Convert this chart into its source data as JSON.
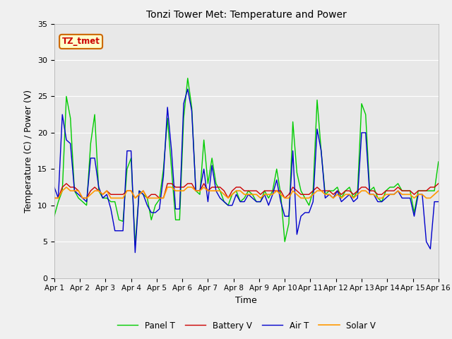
{
  "title": "Tonzi Tower Met: Temperature and Power",
  "xlabel": "Time",
  "ylabel": "Temperature (C) / Power (V)",
  "annotation": "TZ_tmet",
  "ylim": [
    0,
    35
  ],
  "xlim": [
    0,
    15
  ],
  "xtick_labels": [
    "Apr 1",
    "Apr 2",
    "Apr 3",
    "Apr 4",
    "Apr 5",
    "Apr 6",
    "Apr 7",
    "Apr 8",
    "Apr 9",
    "Apr 10",
    "Apr 11",
    "Apr 12",
    "Apr 13",
    "Apr 14",
    "Apr 15",
    "Apr 16"
  ],
  "ytick_labels": [
    "0",
    "5",
    "10",
    "15",
    "20",
    "25",
    "30",
    "35"
  ],
  "fig_facecolor": "#f0f0f0",
  "plot_bg_color": "#e8e8e8",
  "panel_T_color": "#00cc00",
  "battery_V_color": "#cc0000",
  "air_T_color": "#0000cc",
  "solar_V_color": "#ff9900",
  "panel_T": [
    8.5,
    10.5,
    12.0,
    25.0,
    22.0,
    12.0,
    11.0,
    10.5,
    10.0,
    18.5,
    22.5,
    12.0,
    11.0,
    11.0,
    10.5,
    10.5,
    8.0,
    7.8,
    15.0,
    16.5,
    4.5,
    12.0,
    11.5,
    11.0,
    8.0,
    10.0,
    10.8,
    15.0,
    22.0,
    15.0,
    8.0,
    8.0,
    22.0,
    27.5,
    23.5,
    12.0,
    11.5,
    19.0,
    13.0,
    16.5,
    13.0,
    12.0,
    10.5,
    10.0,
    11.5,
    12.0,
    10.5,
    11.0,
    12.0,
    11.5,
    10.5,
    10.5,
    12.0,
    11.0,
    12.0,
    15.0,
    11.5,
    5.0,
    7.5,
    21.5,
    14.5,
    12.0,
    11.0,
    10.0,
    12.0,
    24.5,
    17.5,
    11.5,
    12.0,
    12.0,
    12.5,
    11.0,
    12.0,
    12.5,
    11.0,
    12.0,
    24.0,
    22.5,
    12.0,
    12.5,
    11.0,
    10.5,
    12.0,
    12.5,
    12.5,
    13.0,
    12.0,
    12.0,
    12.0,
    9.0,
    12.0,
    12.0,
    12.0,
    12.0,
    12.0,
    16.0
  ],
  "battery_V": [
    11.0,
    11.0,
    12.5,
    13.0,
    12.5,
    12.5,
    12.0,
    11.0,
    11.0,
    12.0,
    12.5,
    12.0,
    11.5,
    12.0,
    11.5,
    11.5,
    11.5,
    11.5,
    12.0,
    12.0,
    11.0,
    11.5,
    12.0,
    11.0,
    11.5,
    11.5,
    11.0,
    11.0,
    13.0,
    13.0,
    12.5,
    12.5,
    12.5,
    13.0,
    13.0,
    12.0,
    12.0,
    13.0,
    12.0,
    12.5,
    12.5,
    12.5,
    12.0,
    11.0,
    12.0,
    12.5,
    12.5,
    12.0,
    12.0,
    12.0,
    12.0,
    11.5,
    12.0,
    12.0,
    12.0,
    12.0,
    12.0,
    11.0,
    11.5,
    12.5,
    12.0,
    11.5,
    11.5,
    11.5,
    12.0,
    12.5,
    12.0,
    12.0,
    12.0,
    11.5,
    12.0,
    11.5,
    12.0,
    12.0,
    11.5,
    12.0,
    12.5,
    12.5,
    12.0,
    12.0,
    11.5,
    11.5,
    12.0,
    12.0,
    12.0,
    12.5,
    12.0,
    12.0,
    12.0,
    11.5,
    12.0,
    12.0,
    12.0,
    12.5,
    12.5,
    13.0
  ],
  "air_T": [
    12.5,
    11.0,
    22.5,
    19.0,
    18.5,
    12.0,
    11.5,
    11.0,
    10.5,
    16.5,
    16.5,
    12.5,
    11.0,
    11.5,
    9.5,
    6.5,
    6.5,
    6.5,
    17.5,
    17.5,
    3.5,
    12.0,
    11.5,
    10.0,
    9.0,
    9.0,
    9.5,
    14.0,
    23.5,
    17.5,
    9.5,
    9.5,
    24.0,
    26.0,
    23.0,
    12.0,
    12.0,
    15.0,
    10.5,
    15.5,
    12.0,
    11.0,
    10.5,
    10.0,
    10.0,
    11.5,
    10.5,
    10.5,
    11.5,
    11.0,
    10.5,
    10.5,
    11.5,
    10.0,
    11.5,
    13.5,
    10.5,
    8.5,
    8.5,
    17.5,
    6.0,
    8.5,
    9.0,
    9.0,
    10.5,
    20.5,
    17.5,
    11.0,
    11.5,
    11.0,
    12.0,
    10.5,
    11.0,
    11.5,
    10.5,
    11.0,
    20.0,
    20.0,
    11.5,
    11.5,
    10.5,
    10.5,
    11.0,
    11.5,
    11.5,
    12.0,
    11.0,
    11.0,
    11.0,
    8.5,
    11.5,
    11.5,
    5.0,
    4.0,
    10.5,
    10.5
  ],
  "solar_V": [
    11.0,
    11.0,
    12.0,
    12.5,
    12.0,
    12.0,
    12.0,
    11.0,
    11.0,
    11.5,
    12.0,
    12.0,
    11.5,
    12.0,
    11.0,
    11.0,
    11.0,
    11.0,
    12.0,
    12.0,
    11.0,
    11.5,
    12.0,
    11.0,
    11.0,
    11.0,
    11.0,
    11.0,
    12.5,
    12.5,
    12.0,
    12.0,
    12.0,
    12.5,
    12.5,
    12.0,
    12.0,
    12.5,
    12.0,
    12.0,
    12.0,
    12.0,
    11.5,
    11.0,
    11.5,
    12.0,
    12.0,
    11.5,
    11.5,
    11.5,
    11.5,
    11.0,
    11.5,
    11.5,
    11.5,
    12.0,
    11.5,
    11.0,
    11.0,
    12.0,
    11.5,
    11.0,
    11.0,
    11.0,
    11.5,
    12.0,
    12.0,
    11.5,
    11.5,
    11.0,
    11.5,
    11.0,
    11.5,
    11.5,
    11.0,
    11.5,
    12.0,
    12.0,
    11.5,
    11.5,
    11.0,
    11.0,
    11.5,
    11.5,
    11.5,
    12.0,
    11.5,
    11.5,
    11.5,
    11.0,
    11.5,
    11.5,
    11.0,
    11.0,
    11.5,
    12.0
  ]
}
